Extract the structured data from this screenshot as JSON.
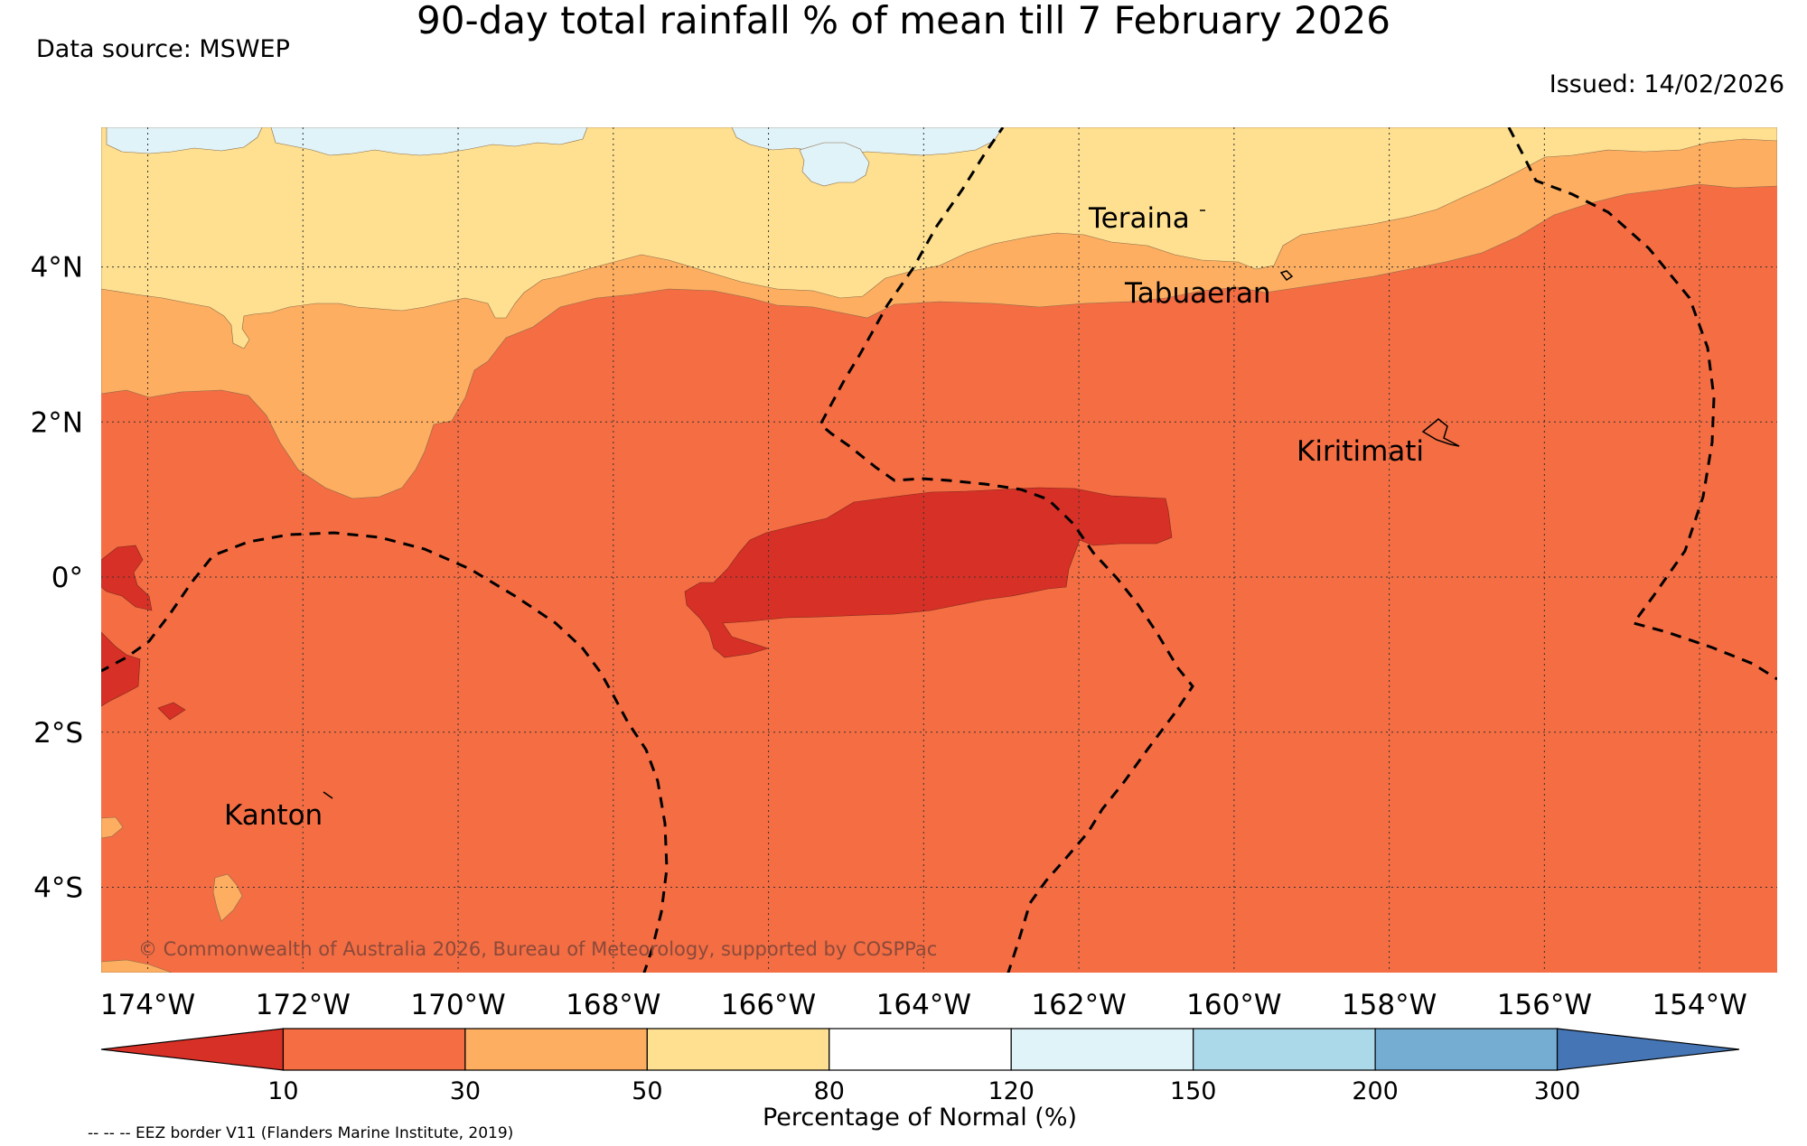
{
  "title": "90-day total rainfall % of mean till 7 February 2026",
  "data_source": "Data source: MSWEP",
  "issued": "Issued: 14/02/2026",
  "copyright": "© Commonwealth of Australia 2026, Bureau of Meteorology, supported by COSPPac",
  "eez_note": "-- -- -- EEZ border V11 (Flanders Marine Institute, 2019)",
  "map": {
    "lon_min": -174.6,
    "lon_max": -153.0,
    "lat_min": -5.1,
    "lat_max": 5.8,
    "lon_ticks": [
      {
        "value": -174,
        "label": "174°W"
      },
      {
        "value": -172,
        "label": "172°W"
      },
      {
        "value": -170,
        "label": "170°W"
      },
      {
        "value": -168,
        "label": "168°W"
      },
      {
        "value": -166,
        "label": "166°W"
      },
      {
        "value": -164,
        "label": "164°W"
      },
      {
        "value": -162,
        "label": "162°W"
      },
      {
        "value": -160,
        "label": "160°W"
      },
      {
        "value": -158,
        "label": "158°W"
      },
      {
        "value": -156,
        "label": "156°W"
      },
      {
        "value": -154,
        "label": "154°W"
      }
    ],
    "lat_ticks": [
      {
        "value": 4,
        "label": "4°N"
      },
      {
        "value": 2,
        "label": "2°N"
      },
      {
        "value": 0,
        "label": "0°"
      },
      {
        "value": -2,
        "label": "2°S"
      },
      {
        "value": -4,
        "label": "4°S"
      }
    ],
    "places": [
      {
        "name": "Teraina",
        "lon": -161.9,
        "lat": 4.6
      },
      {
        "name": "Tabuaeran",
        "lon": -161.0,
        "lat": 3.55
      },
      {
        "name": "Kiritimati",
        "lon": -159.3,
        "lat": 1.55
      },
      {
        "name": "Kanton",
        "lon": -173.0,
        "lat": -3.2
      }
    ]
  },
  "legend": {
    "title": "Percentage of Normal (%)",
    "boundaries": [
      "10",
      "30",
      "50",
      "80",
      "120",
      "150",
      "200",
      "300"
    ],
    "colors": [
      "#d73027",
      "#f46d43",
      "#fdae61",
      "#fee090",
      "#ffffff",
      "#e0f3f8",
      "#abd9e9",
      "#74add1",
      "#4575b4"
    ]
  }
}
